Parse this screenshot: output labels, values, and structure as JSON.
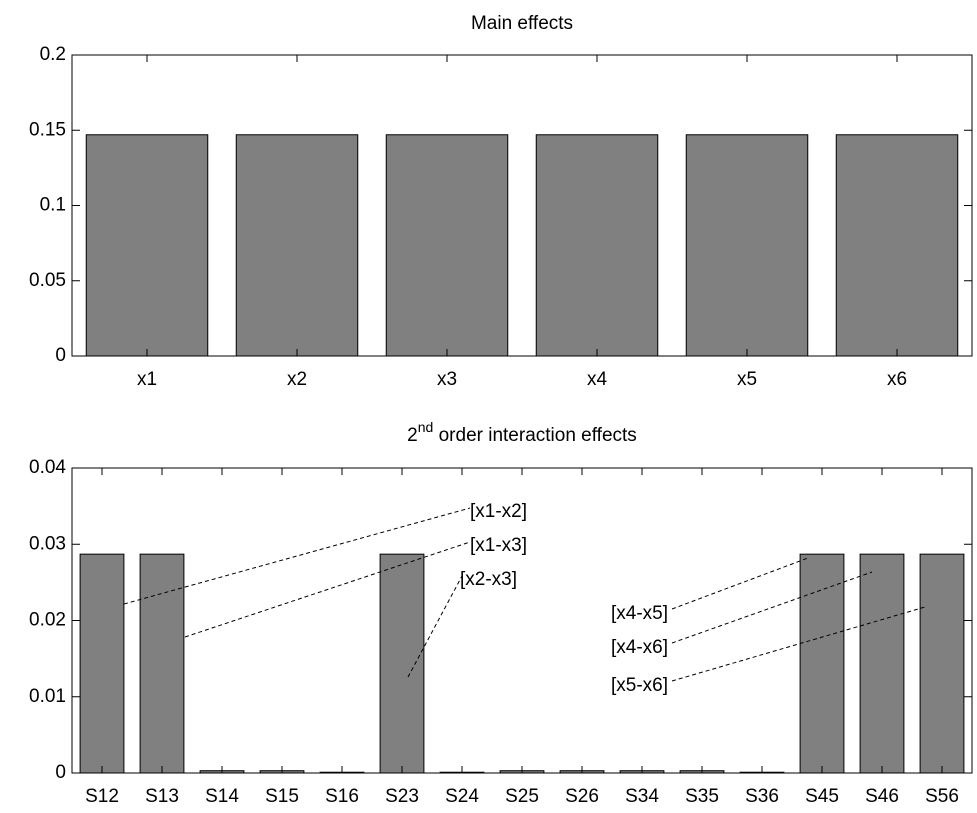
{
  "chart_data": [
    {
      "type": "bar",
      "title": "Main effects",
      "categories": [
        "x1",
        "x2",
        "x3",
        "x4",
        "x5",
        "x6"
      ],
      "values": [
        0.147,
        0.147,
        0.147,
        0.147,
        0.147,
        0.147
      ],
      "color": "#808080",
      "ylim": [
        0,
        0.2
      ],
      "yticks": [
        0,
        0.05,
        0.1,
        0.15,
        0.2
      ]
    },
    {
      "type": "bar",
      "title": {
        "base": "2",
        "sup": "nd",
        "rest": " order interaction effects"
      },
      "categories": [
        "S12",
        "S13",
        "S14",
        "S15",
        "S16",
        "S23",
        "S24",
        "S25",
        "S26",
        "S34",
        "S35",
        "S36",
        "S45",
        "S46",
        "S56"
      ],
      "values": [
        0.0287,
        0.0287,
        0.0003,
        0.0003,
        0.0001,
        0.0287,
        0.0001,
        0.0003,
        0.0003,
        0.0003,
        0.0003,
        0.0001,
        0.0287,
        0.0287,
        0.0287
      ],
      "color": "#808080",
      "ylim": [
        0,
        0.04
      ],
      "yticks": [
        0,
        0.01,
        0.02,
        0.03,
        0.04
      ],
      "annotations": [
        "[x1-x2]",
        "[x1-x3]",
        "[x2-x3]",
        "[x4-x5]",
        "[x4-x6]",
        "[x5-x6]"
      ]
    }
  ]
}
